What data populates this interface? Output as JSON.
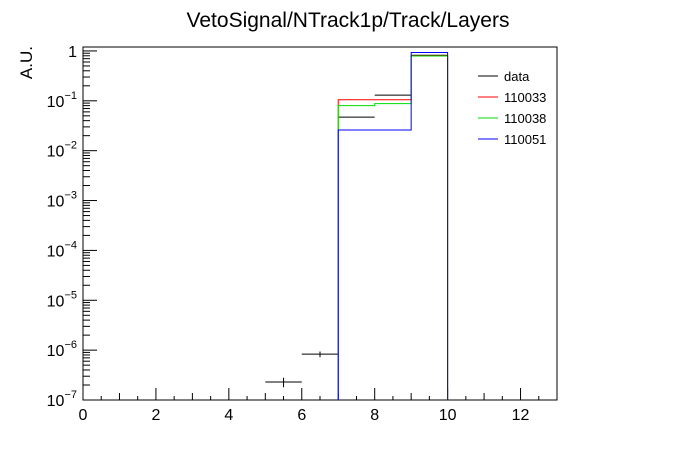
{
  "chart_data": {
    "type": "line",
    "title": "VetoSignal/NTrack1p/Track/Layers",
    "xlabel": "",
    "ylabel": "A.U.",
    "xlim": [
      0,
      13
    ],
    "ylim": [
      1e-07,
      1.2
    ],
    "log_y": true,
    "grid": false,
    "legend_position": "top-right",
    "x_ticks": [
      "0",
      "2",
      "4",
      "6",
      "8",
      "10",
      "12"
    ],
    "y_ticks": [
      {
        "value": 1e-07,
        "base": "10",
        "exp": "−7"
      },
      {
        "value": 1e-06,
        "base": "10",
        "exp": "−6"
      },
      {
        "value": 1e-05,
        "base": "10",
        "exp": "−5"
      },
      {
        "value": 0.0001,
        "base": "10",
        "exp": "−4"
      },
      {
        "value": 0.001,
        "base": "10",
        "exp": "−3"
      },
      {
        "value": 0.01,
        "base": "10",
        "exp": "−2"
      },
      {
        "value": 0.1,
        "base": "10",
        "exp": "−1"
      },
      {
        "value": 1,
        "base": "1",
        "exp": ""
      }
    ],
    "series": [
      {
        "name": "data",
        "style": "points",
        "color": "#000000",
        "points": [
          {
            "x0": 5,
            "x1": 6,
            "y": 2.3e-07,
            "ylo": 1.8e-07,
            "yhi": 2.8e-07
          },
          {
            "x0": 6,
            "x1": 7,
            "y": 8.3e-07,
            "ylo": 7.2e-07,
            "yhi": 9.4e-07
          },
          {
            "x0": 7,
            "x1": 8,
            "y": 0.047
          },
          {
            "x0": 8,
            "x1": 9,
            "y": 0.13
          },
          {
            "x0": 9,
            "x1": 10,
            "y": 0.82
          }
        ]
      },
      {
        "name": "110033",
        "style": "hist",
        "color": "#ff0000",
        "bins": [
          {
            "x0": 7,
            "x1": 9,
            "y": 0.105
          },
          {
            "x0": 9,
            "x1": 10,
            "y": 0.8
          }
        ]
      },
      {
        "name": "110038",
        "style": "hist",
        "color": "#00dd00",
        "bins": [
          {
            "x0": 7,
            "x1": 8,
            "y": 0.08
          },
          {
            "x0": 8,
            "x1": 9,
            "y": 0.088
          },
          {
            "x0": 9,
            "x1": 10,
            "y": 0.79
          }
        ]
      },
      {
        "name": "110051",
        "style": "hist",
        "color": "#0000ff",
        "bins": [
          {
            "x0": 7,
            "x1": 9,
            "y": 0.026
          },
          {
            "x0": 9,
            "x1": 10,
            "y": 0.93
          }
        ]
      }
    ]
  }
}
